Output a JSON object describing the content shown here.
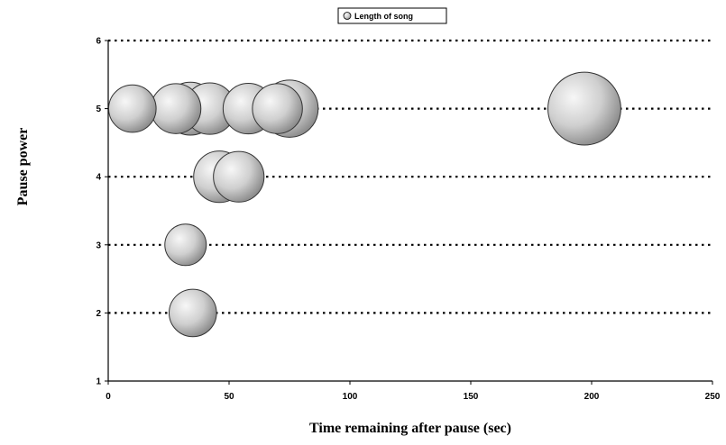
{
  "chart_data": {
    "type": "bubble",
    "xlabel": "Time remaining after pause (sec)",
    "ylabel": "Pause power",
    "xlim": [
      0,
      250
    ],
    "ylim": [
      1,
      6
    ],
    "x_ticks": [
      0,
      50,
      100,
      150,
      200,
      250
    ],
    "y_ticks": [
      1,
      2,
      3,
      4,
      5,
      6
    ],
    "grid": "horizontal dotted",
    "legend_position": "top-center",
    "series": [
      {
        "name": "Length of song",
        "points": [
          {
            "x": 10,
            "y": 5,
            "size": 72
          },
          {
            "x": 28,
            "y": 5,
            "size": 80
          },
          {
            "x": 42,
            "y": 5,
            "size": 85
          },
          {
            "x": 34,
            "y": 5,
            "size": 90
          },
          {
            "x": 58,
            "y": 5,
            "size": 82
          },
          {
            "x": 75,
            "y": 5,
            "size": 105
          },
          {
            "x": 70,
            "y": 5,
            "size": 80
          },
          {
            "x": 197,
            "y": 5,
            "size": 170
          },
          {
            "x": 46,
            "y": 4,
            "size": 85
          },
          {
            "x": 54,
            "y": 4,
            "size": 82
          },
          {
            "x": 32,
            "y": 3,
            "size": 55
          },
          {
            "x": 35,
            "y": 2,
            "size": 72
          }
        ]
      }
    ]
  }
}
